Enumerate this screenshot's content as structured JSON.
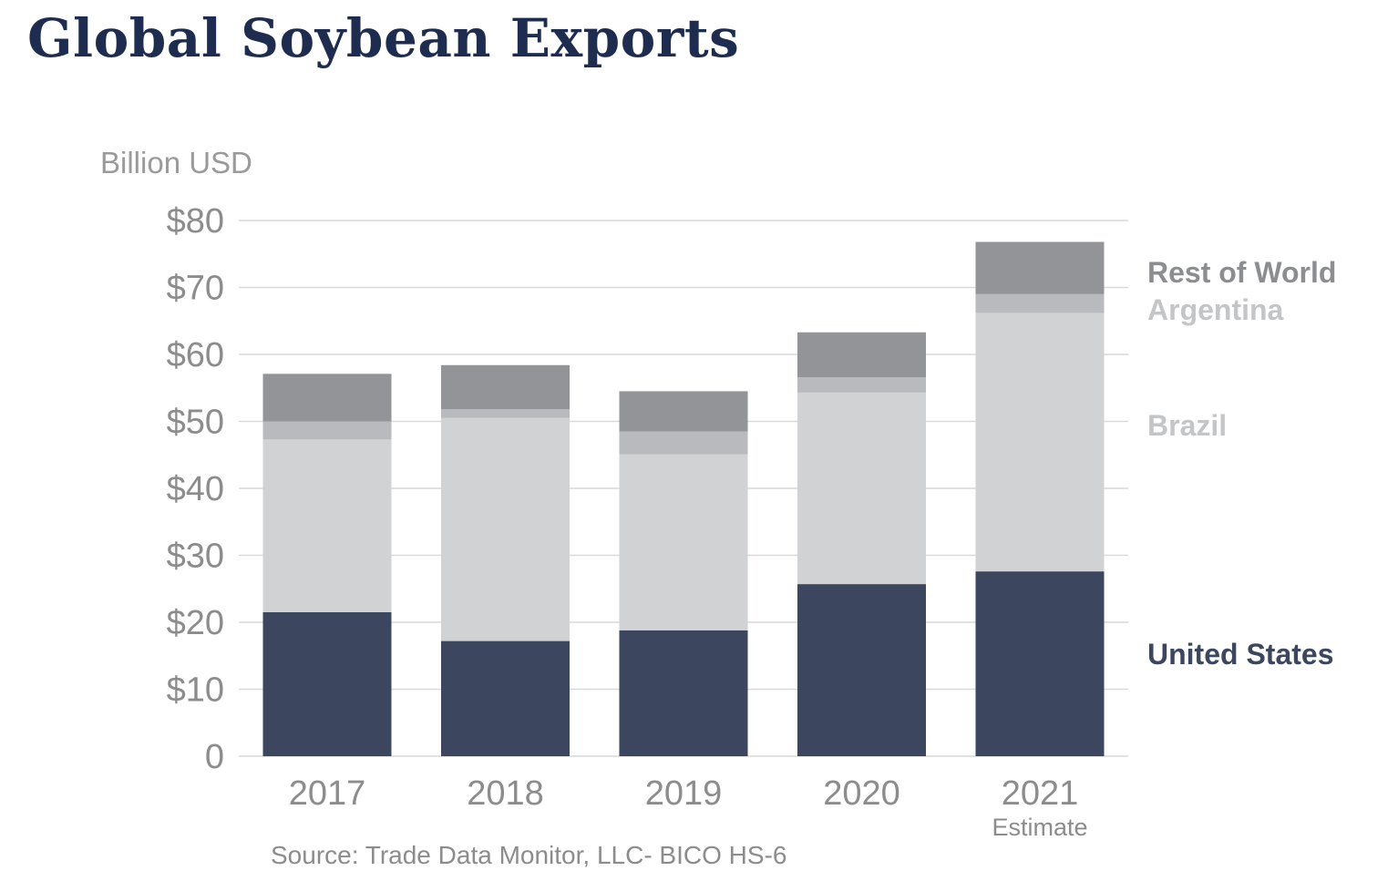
{
  "title": "Global Soybean Exports",
  "chart_data": {
    "type": "bar",
    "stacked": true,
    "title": "Global Soybean Exports",
    "ylabel": "Billion USD",
    "xlabel": "",
    "ylim": [
      0,
      80
    ],
    "yticks": [
      0,
      10,
      20,
      30,
      40,
      50,
      60,
      70,
      80
    ],
    "ytick_labels": [
      "0",
      "$10",
      "$20",
      "$30",
      "$40",
      "$50",
      "$60",
      "$70",
      "$80"
    ],
    "categories": [
      "2017",
      "2018",
      "2019",
      "2020",
      "2021"
    ],
    "category_notes": [
      "",
      "",
      "",
      "",
      "Estimate"
    ],
    "grid": true,
    "legend_placement": "right",
    "series": [
      {
        "name": "United States",
        "values": [
          21.5,
          17.2,
          18.8,
          25.7,
          27.6
        ],
        "color": "#3c465e"
      },
      {
        "name": "Brazil",
        "values": [
          25.8,
          33.3,
          26.3,
          28.6,
          38.6
        ],
        "color": "#d1d2d4"
      },
      {
        "name": "Argentina",
        "values": [
          2.7,
          1.3,
          3.4,
          2.3,
          2.8
        ],
        "color": "#b9babd"
      },
      {
        "name": "Rest of World",
        "values": [
          7.1,
          6.6,
          6.0,
          6.7,
          7.8
        ],
        "color": "#939498"
      }
    ],
    "legend_colors": {
      "United States": "#3c465e",
      "Brazil": "#c4c5c7",
      "Argentina": "#c4c5c7",
      "Rest of World": "#8c8d91"
    },
    "source": "Source: Trade Data Monitor, LLC- BICO HS-6"
  }
}
